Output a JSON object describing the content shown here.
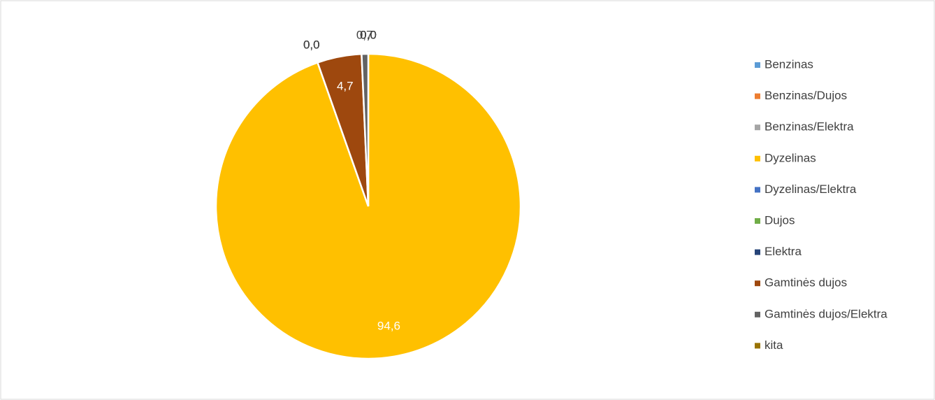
{
  "chart_data": {
    "type": "pie",
    "categories": [
      "Benzinas",
      "Benzinas/Dujos",
      "Benzinas/Elektra",
      "Dyzelinas",
      "Dyzelinas/Elektra",
      "Dujos",
      "Elektra",
      "Gamtinės dujos",
      "Gamtinės dujos/Elektra",
      "kita"
    ],
    "values": [
      0,
      0,
      0,
      94.6,
      0,
      0,
      0,
      4.7,
      0.7,
      0
    ],
    "value_labels": [
      "0,0",
      "0,0",
      "0,0",
      "94,6",
      "0,0",
      "0,0",
      "0,0",
      "4,7",
      "0,7",
      "0,0"
    ],
    "colors": [
      "#5b9bd5",
      "#ed7d31",
      "#a5a5a5",
      "#ffc000",
      "#4472c4",
      "#70ad47",
      "#264478",
      "#9e480e",
      "#636363",
      "#997300"
    ],
    "legend": "right"
  }
}
